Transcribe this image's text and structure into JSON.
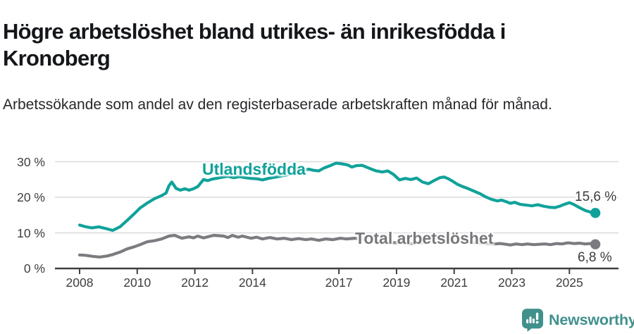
{
  "chart_data": {
    "type": "line",
    "title": "Högre arbetslöshet bland utrikes- än inrikesfödda i Kronoberg",
    "subtitle": "Arbetssökande som andel av den registerbaserade arbetskraften månad för månad.",
    "unit": "%",
    "grid": true,
    "legend_position": "inline-labels-on-lines",
    "x_axis": {
      "tick_labels": [
        "2008",
        "2010",
        "2012",
        "2014",
        "2017",
        "2019",
        "2021",
        "2023",
        "2025"
      ],
      "tick_values": [
        2008,
        2010,
        2012,
        2014,
        2017,
        2019,
        2021,
        2023,
        2025
      ],
      "range": [
        2008,
        2025.9
      ]
    },
    "y_axis": {
      "tick_labels": [
        "0 %",
        "10 %",
        "20 %",
        "30 %"
      ],
      "tick_values": [
        0,
        10,
        20,
        30
      ],
      "range": [
        0,
        32
      ]
    },
    "series": [
      {
        "name": "Utlandsfödda",
        "color": "#10a29a",
        "end_label": "15,6 %",
        "end_value": 15.6,
        "points": [
          [
            2008.0,
            12.2
          ],
          [
            2008.17,
            11.8
          ],
          [
            2008.42,
            11.4
          ],
          [
            2008.67,
            11.7
          ],
          [
            2008.92,
            11.2
          ],
          [
            2009.15,
            10.7
          ],
          [
            2009.4,
            11.7
          ],
          [
            2009.65,
            13.5
          ],
          [
            2009.9,
            15.4
          ],
          [
            2010.1,
            17.0
          ],
          [
            2010.35,
            18.4
          ],
          [
            2010.6,
            19.6
          ],
          [
            2010.85,
            20.5
          ],
          [
            2011.0,
            21.2
          ],
          [
            2011.1,
            23.2
          ],
          [
            2011.2,
            24.3
          ],
          [
            2011.35,
            22.5
          ],
          [
            2011.5,
            22.0
          ],
          [
            2011.65,
            22.4
          ],
          [
            2011.8,
            22.0
          ],
          [
            2011.95,
            22.4
          ],
          [
            2012.1,
            23.0
          ],
          [
            2012.3,
            25.0
          ],
          [
            2012.45,
            24.7
          ],
          [
            2012.6,
            25.1
          ],
          [
            2012.8,
            25.4
          ],
          [
            2013.0,
            25.7
          ],
          [
            2013.15,
            25.9
          ],
          [
            2013.35,
            25.5
          ],
          [
            2013.55,
            25.8
          ],
          [
            2013.75,
            25.5
          ],
          [
            2013.95,
            25.3
          ],
          [
            2014.15,
            25.2
          ],
          [
            2014.35,
            24.9
          ],
          [
            2014.55,
            25.3
          ],
          [
            2014.75,
            25.6
          ],
          [
            2014.95,
            25.9
          ],
          [
            2015.15,
            26.2
          ],
          [
            2015.35,
            26.6
          ],
          [
            2015.55,
            27.0
          ],
          [
            2015.8,
            27.6
          ],
          [
            2015.95,
            27.9
          ],
          [
            2016.1,
            27.6
          ],
          [
            2016.3,
            27.4
          ],
          [
            2016.5,
            28.3
          ],
          [
            2016.7,
            28.9
          ],
          [
            2016.9,
            29.6
          ],
          [
            2017.1,
            29.4
          ],
          [
            2017.3,
            29.1
          ],
          [
            2017.45,
            28.5
          ],
          [
            2017.6,
            28.9
          ],
          [
            2017.8,
            29.0
          ],
          [
            2017.95,
            28.5
          ],
          [
            2018.1,
            28.0
          ],
          [
            2018.3,
            27.4
          ],
          [
            2018.5,
            27.1
          ],
          [
            2018.7,
            27.4
          ],
          [
            2018.9,
            26.4
          ],
          [
            2019.1,
            24.9
          ],
          [
            2019.3,
            25.3
          ],
          [
            2019.5,
            25.0
          ],
          [
            2019.7,
            25.4
          ],
          [
            2019.9,
            24.3
          ],
          [
            2020.1,
            23.8
          ],
          [
            2020.3,
            24.7
          ],
          [
            2020.5,
            25.5
          ],
          [
            2020.65,
            25.7
          ],
          [
            2020.8,
            25.2
          ],
          [
            2020.95,
            24.5
          ],
          [
            2021.1,
            23.7
          ],
          [
            2021.3,
            23.0
          ],
          [
            2021.5,
            22.4
          ],
          [
            2021.7,
            21.7
          ],
          [
            2021.9,
            21.0
          ],
          [
            2022.1,
            20.1
          ],
          [
            2022.3,
            19.4
          ],
          [
            2022.5,
            19.0
          ],
          [
            2022.65,
            19.2
          ],
          [
            2022.8,
            18.8
          ],
          [
            2022.95,
            18.3
          ],
          [
            2023.1,
            18.6
          ],
          [
            2023.3,
            18.0
          ],
          [
            2023.5,
            17.8
          ],
          [
            2023.7,
            17.6
          ],
          [
            2023.9,
            17.9
          ],
          [
            2024.1,
            17.5
          ],
          [
            2024.3,
            17.2
          ],
          [
            2024.5,
            17.1
          ],
          [
            2024.7,
            17.6
          ],
          [
            2024.85,
            18.1
          ],
          [
            2025.0,
            18.5
          ],
          [
            2025.15,
            18.0
          ],
          [
            2025.35,
            17.1
          ],
          [
            2025.55,
            16.3
          ],
          [
            2025.75,
            15.8
          ],
          [
            2025.9,
            15.6
          ]
        ]
      },
      {
        "name": "Total arbetslöshet",
        "color": "#7c7c80",
        "end_label": "6,8 %",
        "end_value": 6.8,
        "points": [
          [
            2008.0,
            3.8
          ],
          [
            2008.2,
            3.7
          ],
          [
            2008.45,
            3.4
          ],
          [
            2008.7,
            3.2
          ],
          [
            2008.95,
            3.5
          ],
          [
            2009.15,
            3.9
          ],
          [
            2009.4,
            4.6
          ],
          [
            2009.65,
            5.5
          ],
          [
            2009.9,
            6.1
          ],
          [
            2010.1,
            6.7
          ],
          [
            2010.35,
            7.5
          ],
          [
            2010.6,
            7.8
          ],
          [
            2010.85,
            8.3
          ],
          [
            2011.1,
            9.1
          ],
          [
            2011.3,
            9.3
          ],
          [
            2011.55,
            8.5
          ],
          [
            2011.8,
            8.9
          ],
          [
            2011.95,
            8.6
          ],
          [
            2012.1,
            9.1
          ],
          [
            2012.3,
            8.6
          ],
          [
            2012.5,
            9.0
          ],
          [
            2012.65,
            9.3
          ],
          [
            2013.0,
            9.1
          ],
          [
            2013.15,
            8.7
          ],
          [
            2013.3,
            9.3
          ],
          [
            2013.5,
            8.8
          ],
          [
            2013.65,
            9.1
          ],
          [
            2013.95,
            8.5
          ],
          [
            2014.15,
            8.8
          ],
          [
            2014.35,
            8.3
          ],
          [
            2014.6,
            8.7
          ],
          [
            2014.85,
            8.3
          ],
          [
            2015.1,
            8.5
          ],
          [
            2015.35,
            8.1
          ],
          [
            2015.6,
            8.4
          ],
          [
            2015.85,
            8.1
          ],
          [
            2016.05,
            8.3
          ],
          [
            2016.3,
            7.9
          ],
          [
            2016.55,
            8.3
          ],
          [
            2016.8,
            8.1
          ],
          [
            2017.05,
            8.5
          ],
          [
            2017.25,
            8.3
          ],
          [
            2017.55,
            8.5
          ],
          [
            2017.8,
            8.2
          ],
          [
            2018.0,
            8.0
          ],
          [
            2018.25,
            7.8
          ],
          [
            2018.5,
            7.6
          ],
          [
            2018.75,
            7.4
          ],
          [
            2019.0,
            7.2
          ],
          [
            2019.25,
            7.1
          ],
          [
            2019.5,
            7.0
          ],
          [
            2019.75,
            7.1
          ],
          [
            2020.0,
            7.3
          ],
          [
            2020.25,
            8.1
          ],
          [
            2020.45,
            8.6
          ],
          [
            2020.7,
            8.4
          ],
          [
            2020.95,
            8.1
          ],
          [
            2021.2,
            7.8
          ],
          [
            2021.45,
            7.5
          ],
          [
            2021.7,
            7.3
          ],
          [
            2021.95,
            7.1
          ],
          [
            2022.2,
            7.0
          ],
          [
            2022.4,
            6.9
          ],
          [
            2022.6,
            7.0
          ],
          [
            2022.8,
            6.8
          ],
          [
            2022.95,
            6.6
          ],
          [
            2023.15,
            6.9
          ],
          [
            2023.35,
            6.7
          ],
          [
            2023.55,
            6.9
          ],
          [
            2023.75,
            6.7
          ],
          [
            2023.95,
            6.8
          ],
          [
            2024.15,
            6.9
          ],
          [
            2024.35,
            6.7
          ],
          [
            2024.55,
            7.0
          ],
          [
            2024.75,
            6.9
          ],
          [
            2024.95,
            7.2
          ],
          [
            2025.15,
            7.0
          ],
          [
            2025.35,
            7.1
          ],
          [
            2025.55,
            6.9
          ],
          [
            2025.75,
            7.0
          ],
          [
            2025.9,
            6.8
          ]
        ]
      }
    ]
  },
  "branding": {
    "name": "Newsworthy",
    "icon": "bar-chart-speech-bubble-icon"
  },
  "colors": {
    "accent_teal": "#10a29a",
    "series_gray": "#7c7c80",
    "axis": "#404040",
    "grid": "#dadada",
    "title_text": "#14161a",
    "logo_teal": "#40908c"
  }
}
